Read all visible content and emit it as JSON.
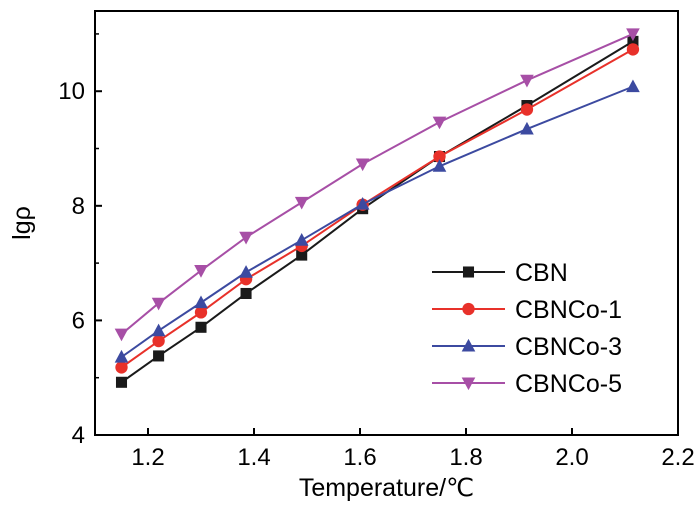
{
  "chart_data": {
    "type": "line",
    "title": "",
    "xlabel": "Temperature/℃",
    "ylabel": "lgρ",
    "xlim": [
      1.1,
      2.2
    ],
    "ylim": [
      4,
      11.4
    ],
    "x_ticks": [
      {
        "value": 1.2,
        "label": "1.2"
      },
      {
        "value": 1.4,
        "label": "1.4"
      },
      {
        "value": 1.6,
        "label": "1.6"
      },
      {
        "value": 1.8,
        "label": "1.8"
      },
      {
        "value": 2.0,
        "label": "2.0"
      },
      {
        "value": 2.2,
        "label": "2.2"
      }
    ],
    "y_ticks": [
      {
        "value": 4,
        "label": "4"
      },
      {
        "value": 6,
        "label": "6"
      },
      {
        "value": 8,
        "label": "8"
      },
      {
        "value": 10,
        "label": "10"
      }
    ],
    "legend_position": "bottom-right",
    "x": [
      1.15,
      1.22,
      1.3,
      1.385,
      1.49,
      1.605,
      1.75,
      1.915,
      2.115
    ],
    "series": [
      {
        "name": "CBN",
        "color": "#1a1a1a",
        "marker": "square",
        "values": [
          4.92,
          5.38,
          5.88,
          6.47,
          7.14,
          7.95,
          8.86,
          9.75,
          10.87
        ]
      },
      {
        "name": "CBNCo-1",
        "color": "#e8312a",
        "marker": "circle",
        "values": [
          5.18,
          5.64,
          6.14,
          6.72,
          7.3,
          8.02,
          8.86,
          9.68,
          10.73
        ]
      },
      {
        "name": "CBNCo-3",
        "color": "#3c4aa0",
        "marker": "triangle-up",
        "values": [
          5.36,
          5.82,
          6.31,
          6.84,
          7.4,
          8.03,
          8.69,
          9.34,
          10.08
        ]
      },
      {
        "name": "CBNCo-5",
        "color": "#a74fa6",
        "marker": "triangle-down",
        "values": [
          5.76,
          6.3,
          6.87,
          7.45,
          8.06,
          8.73,
          9.46,
          10.19,
          11.0
        ]
      }
    ]
  }
}
